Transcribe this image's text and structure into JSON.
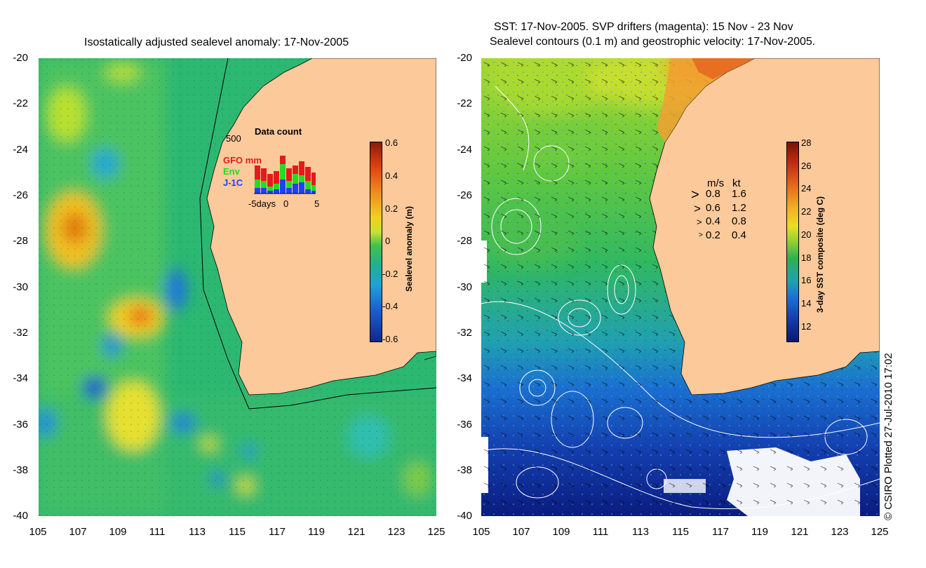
{
  "left_panel": {
    "title": "Isostatically adjusted sealevel anomaly: 17-Nov-2005",
    "colorbar": {
      "label": "Sealevel anomaly (m)",
      "ticks": [
        "0.6",
        "0.4",
        "0.2",
        "0",
        "-0.2",
        "-0.4",
        "-0.6"
      ]
    },
    "inset": {
      "title": "Data count",
      "ymax": "500",
      "series": [
        {
          "name": "GFO mm",
          "color": "#e41a1c"
        },
        {
          "name": "Env",
          "color": "#22dd22"
        },
        {
          "name": "J-1C",
          "color": "#1f3fff"
        }
      ],
      "xlabels": [
        "-5days",
        "0",
        "5"
      ]
    }
  },
  "right_panel": {
    "title_line1": "SST: 17-Nov-2005. SVP drifters (magenta): 15 Nov - 23 Nov",
    "title_line2": "Sealevel contours (0.1 m) and geostrophic velocity: 17-Nov-2005.",
    "colorbar": {
      "label": "3-day SST composite (deg C)",
      "ticks": [
        "28",
        "26",
        "24",
        "22",
        "20",
        "18",
        "16",
        "14",
        "12"
      ]
    },
    "velocity_legend": {
      "header_ms": "m/s",
      "header_kt": "kt",
      "rows": [
        {
          "ms": "0.8",
          "kt": "1.6"
        },
        {
          "ms": "0.6",
          "kt": "1.2"
        },
        {
          "ms": "0.4",
          "kt": "0.8"
        },
        {
          "ms": "0.2",
          "kt": "0.4"
        }
      ]
    }
  },
  "axes": {
    "y_ticks": [
      "-20",
      "-22",
      "-24",
      "-26",
      "-28",
      "-30",
      "-32",
      "-34",
      "-36",
      "-38",
      "-40"
    ],
    "x_ticks": [
      "105",
      "107",
      "109",
      "111",
      "113",
      "115",
      "117",
      "119",
      "121",
      "123",
      "125"
    ]
  },
  "copyright": "© CSIRO Plotted 27-Jul-2010 17:02",
  "colors": {
    "land": "#fbc99a",
    "ocean_base_left": "#20b070",
    "ocean_base_right": "#30b050"
  }
}
